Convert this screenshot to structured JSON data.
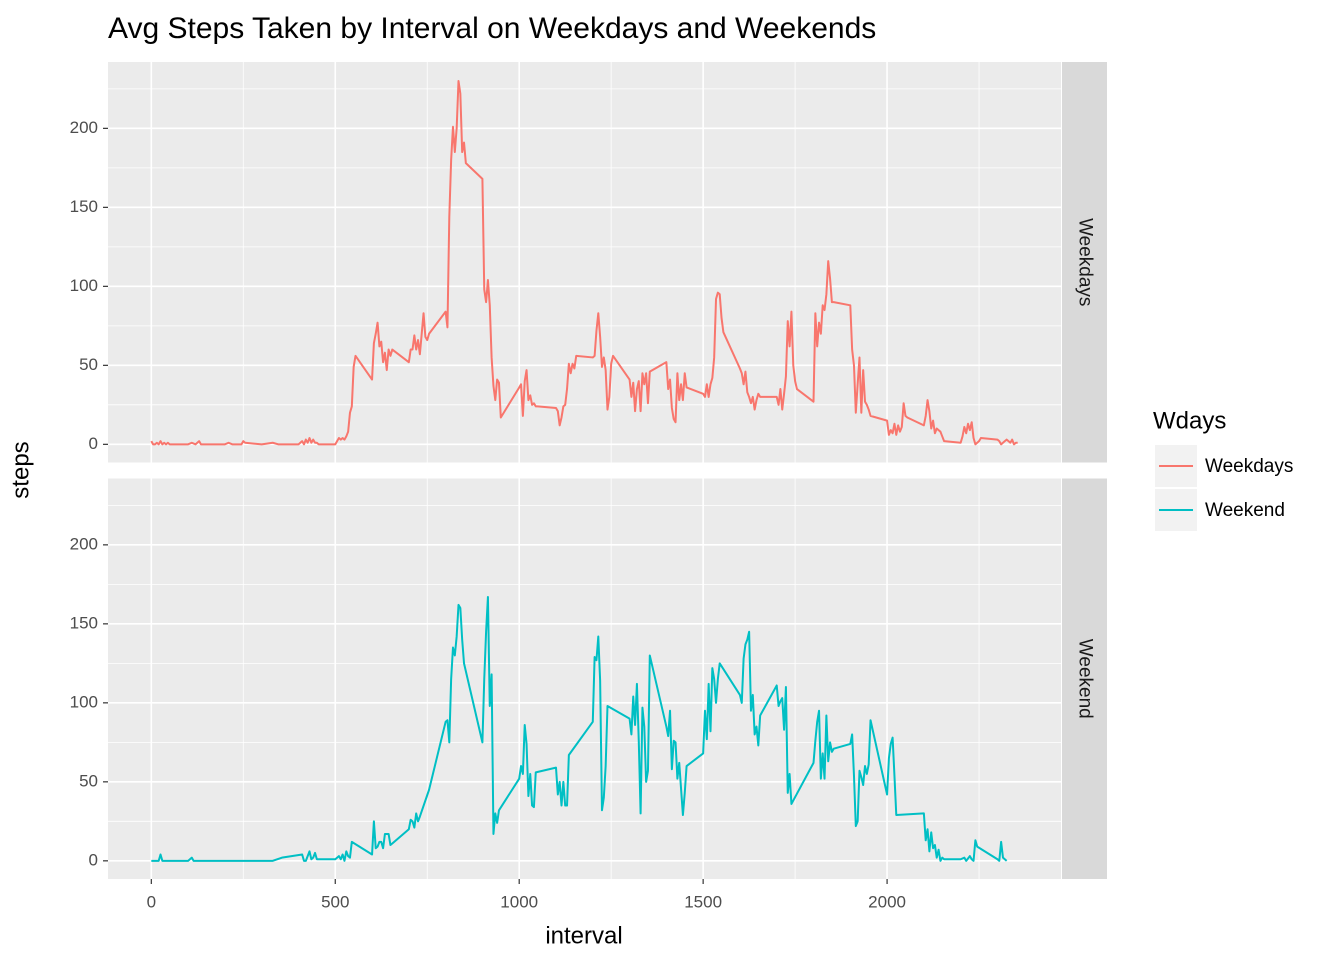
{
  "chart_data": {
    "type": "line",
    "title": "Avg Steps Taken by Interval on Weekdays and Weekends",
    "x_label": "interval",
    "y_label": "steps",
    "legend_title": "Wdays",
    "xlim": [
      -117.75,
      2472.75
    ],
    "xticks": [
      0,
      500,
      1000,
      1500,
      2000
    ],
    "ylim": [
      -11.5,
      242
    ],
    "yticks": [
      0,
      50,
      100,
      150,
      200
    ],
    "grid": true,
    "legend_position": "right",
    "series": [
      {
        "name": "Weekdays",
        "color": "#F8766D",
        "x": [
          0,
          5,
          10,
          15,
          20,
          25,
          30,
          35,
          40,
          45,
          50,
          55,
          100,
          110,
          120,
          130,
          135,
          200,
          210,
          220,
          230,
          245,
          250,
          255,
          300,
          330,
          345,
          400,
          410,
          415,
          420,
          425,
          430,
          435,
          440,
          445,
          450,
          455,
          500,
          505,
          510,
          515,
          520,
          525,
          530,
          535,
          540,
          545,
          550,
          555,
          600,
          605,
          610,
          615,
          620,
          625,
          630,
          635,
          640,
          645,
          650,
          655,
          700,
          705,
          710,
          715,
          720,
          725,
          730,
          735,
          740,
          745,
          750,
          755,
          800,
          805,
          810,
          815,
          820,
          825,
          830,
          835,
          840,
          845,
          850,
          855,
          900,
          905,
          910,
          915,
          920,
          925,
          930,
          935,
          940,
          945,
          950,
          1000,
          1005,
          1010,
          1015,
          1020,
          1025,
          1030,
          1035,
          1040,
          1045,
          1050,
          1100,
          1105,
          1110,
          1115,
          1120,
          1125,
          1130,
          1135,
          1140,
          1145,
          1150,
          1155,
          1200,
          1205,
          1210,
          1215,
          1220,
          1225,
          1230,
          1235,
          1240,
          1245,
          1250,
          1255,
          1300,
          1305,
          1310,
          1315,
          1320,
          1325,
          1330,
          1335,
          1340,
          1345,
          1350,
          1355,
          1400,
          1405,
          1410,
          1415,
          1420,
          1425,
          1430,
          1435,
          1440,
          1445,
          1450,
          1455,
          1500,
          1505,
          1510,
          1515,
          1520,
          1525,
          1530,
          1535,
          1540,
          1545,
          1550,
          1555,
          1600,
          1605,
          1610,
          1615,
          1620,
          1625,
          1630,
          1635,
          1640,
          1645,
          1650,
          1655,
          1700,
          1705,
          1710,
          1715,
          1720,
          1725,
          1730,
          1735,
          1740,
          1745,
          1750,
          1755,
          1800,
          1805,
          1810,
          1815,
          1820,
          1825,
          1830,
          1835,
          1840,
          1845,
          1850,
          1855,
          1900,
          1905,
          1910,
          1915,
          1920,
          1925,
          1930,
          1935,
          1940,
          1945,
          1950,
          1955,
          2000,
          2005,
          2010,
          2015,
          2020,
          2025,
          2030,
          2035,
          2040,
          2045,
          2050,
          2055,
          2100,
          2105,
          2110,
          2115,
          2120,
          2125,
          2130,
          2135,
          2140,
          2145,
          2150,
          2155,
          2200,
          2205,
          2210,
          2215,
          2220,
          2225,
          2230,
          2235,
          2240,
          2245,
          2250,
          2255,
          2300,
          2305,
          2310,
          2315,
          2320,
          2325,
          2330,
          2335,
          2340,
          2345,
          2350,
          2355
        ],
        "values": [
          2,
          0,
          0,
          1,
          0,
          2,
          0,
          1,
          0,
          1,
          0,
          0,
          0,
          1,
          0,
          2,
          0,
          0,
          1,
          0,
          0,
          0,
          2,
          1,
          0,
          1,
          0,
          0,
          2,
          0,
          3,
          1,
          4,
          1,
          3,
          1,
          1,
          0,
          0,
          2,
          4,
          3,
          4,
          3,
          5,
          8,
          20,
          24,
          49,
          56,
          41,
          64,
          70,
          77,
          62,
          65,
          52,
          58,
          47,
          60,
          56,
          60,
          52,
          60,
          60,
          69,
          60,
          66,
          57,
          70,
          83,
          68,
          66,
          70,
          84,
          74,
          144,
          180,
          201,
          185,
          200,
          230,
          222,
          185,
          191,
          178,
          168,
          98,
          90,
          104,
          88,
          55,
          37,
          28,
          41,
          39,
          17,
          36,
          38,
          18,
          40,
          47,
          28,
          31,
          25,
          26,
          24,
          24,
          23,
          21,
          12,
          17,
          24,
          25,
          35,
          51,
          45,
          51,
          48,
          56,
          55,
          56,
          72,
          83,
          68,
          49,
          55,
          47,
          22,
          30,
          51,
          56,
          41,
          30,
          39,
          21,
          35,
          40,
          21,
          45,
          38,
          45,
          26,
          46,
          52,
          35,
          41,
          23,
          16,
          14,
          45,
          28,
          38,
          28,
          45,
          36,
          32,
          30,
          38,
          30,
          38,
          42,
          55,
          92,
          96,
          95,
          80,
          71,
          48,
          45,
          38,
          46,
          33,
          30,
          26,
          30,
          22,
          28,
          32,
          30,
          30,
          25,
          35,
          22,
          32,
          43,
          78,
          62,
          84,
          50,
          40,
          35,
          27,
          83,
          62,
          77,
          70,
          88,
          85,
          95,
          116,
          105,
          90,
          90,
          88,
          60,
          50,
          20,
          38,
          55,
          20,
          47,
          27,
          25,
          22,
          18,
          15,
          6,
          9,
          7,
          13,
          6,
          12,
          8,
          11,
          26,
          18,
          17,
          12,
          18,
          28,
          21,
          10,
          15,
          7,
          10,
          9,
          8,
          5,
          2,
          1,
          5,
          11,
          7,
          13,
          9,
          14,
          4,
          0,
          1,
          2,
          4,
          3,
          2,
          0,
          1,
          2,
          3,
          2,
          1,
          3,
          0,
          1,
          1
        ]
      },
      {
        "name": "Weekend",
        "color": "#00BFC4",
        "x": [
          0,
          10,
          20,
          25,
          30,
          100,
          110,
          115,
          200,
          255,
          300,
          330,
          355,
          410,
          415,
          420,
          430,
          435,
          440,
          445,
          450,
          500,
          510,
          515,
          520,
          525,
          530,
          535,
          540,
          545,
          600,
          605,
          610,
          615,
          620,
          625,
          630,
          635,
          645,
          650,
          655,
          700,
          705,
          710,
          715,
          720,
          725,
          730,
          755,
          800,
          805,
          810,
          815,
          820,
          825,
          830,
          835,
          840,
          845,
          850,
          900,
          905,
          910,
          915,
          920,
          925,
          930,
          935,
          940,
          945,
          1000,
          1005,
          1010,
          1015,
          1020,
          1025,
          1030,
          1035,
          1040,
          1045,
          1100,
          1105,
          1110,
          1115,
          1120,
          1125,
          1130,
          1135,
          1200,
          1205,
          1210,
          1215,
          1220,
          1225,
          1230,
          1235,
          1240,
          1300,
          1305,
          1310,
          1315,
          1320,
          1325,
          1330,
          1335,
          1340,
          1345,
          1350,
          1355,
          1400,
          1405,
          1410,
          1415,
          1420,
          1425,
          1430,
          1435,
          1445,
          1450,
          1455,
          1500,
          1505,
          1510,
          1515,
          1520,
          1525,
          1530,
          1535,
          1540,
          1545,
          1600,
          1605,
          1610,
          1615,
          1620,
          1625,
          1630,
          1635,
          1640,
          1645,
          1650,
          1655,
          1700,
          1705,
          1710,
          1715,
          1720,
          1725,
          1730,
          1735,
          1740,
          1800,
          1805,
          1810,
          1815,
          1820,
          1825,
          1830,
          1835,
          1840,
          1845,
          1850,
          1855,
          1900,
          1905,
          1910,
          1915,
          1920,
          1925,
          1930,
          1935,
          1940,
          1945,
          1950,
          1955,
          2000,
          2005,
          2010,
          2015,
          2020,
          2025,
          2100,
          2105,
          2110,
          2115,
          2120,
          2125,
          2130,
          2135,
          2140,
          2145,
          2150,
          2155,
          2200,
          2210,
          2215,
          2225,
          2230,
          2235,
          2240,
          2245,
          2300,
          2305,
          2310,
          2315,
          2320,
          2325
        ],
        "values": [
          0,
          0,
          0,
          4,
          0,
          0,
          2,
          0,
          0,
          0,
          0,
          0,
          2,
          4,
          0,
          0,
          6,
          1,
          2,
          5,
          1,
          1,
          3,
          1,
          4,
          0,
          6,
          3,
          2,
          12,
          4,
          25,
          8,
          9,
          12,
          12,
          8,
          17,
          17,
          10,
          11,
          20,
          26,
          25,
          21,
          30,
          25,
          28,
          45,
          88,
          89,
          75,
          115,
          135,
          130,
          142,
          162,
          160,
          140,
          125,
          75,
          115,
          145,
          167,
          98,
          118,
          17,
          30,
          24,
          32,
          52,
          60,
          55,
          86,
          74,
          41,
          55,
          35,
          34,
          56,
          59,
          42,
          50,
          35,
          50,
          35,
          35,
          67,
          88,
          129,
          127,
          142,
          114,
          32,
          40,
          60,
          98,
          90,
          80,
          104,
          86,
          112,
          76,
          30,
          97,
          85,
          50,
          57,
          130,
          85,
          79,
          95,
          58,
          76,
          75,
          52,
          62,
          29,
          43,
          60,
          68,
          95,
          77,
          112,
          82,
          122,
          115,
          100,
          115,
          125,
          105,
          100,
          128,
          137,
          140,
          145,
          95,
          105,
          80,
          85,
          73,
          92,
          111,
          98,
          101,
          103,
          83,
          110,
          43,
          55,
          36,
          62,
          76,
          88,
          95,
          52,
          68,
          52,
          92,
          63,
          75,
          69,
          71,
          74,
          80,
          54,
          22,
          25,
          57,
          53,
          48,
          60,
          55,
          61,
          89,
          42,
          65,
          74,
          78,
          54,
          29,
          30,
          13,
          20,
          6,
          18,
          8,
          10,
          2,
          7,
          0,
          2,
          1,
          1,
          2,
          0,
          3,
          1,
          0,
          13,
          9,
          1,
          0,
          12,
          2,
          1,
          0
        ]
      }
    ]
  }
}
